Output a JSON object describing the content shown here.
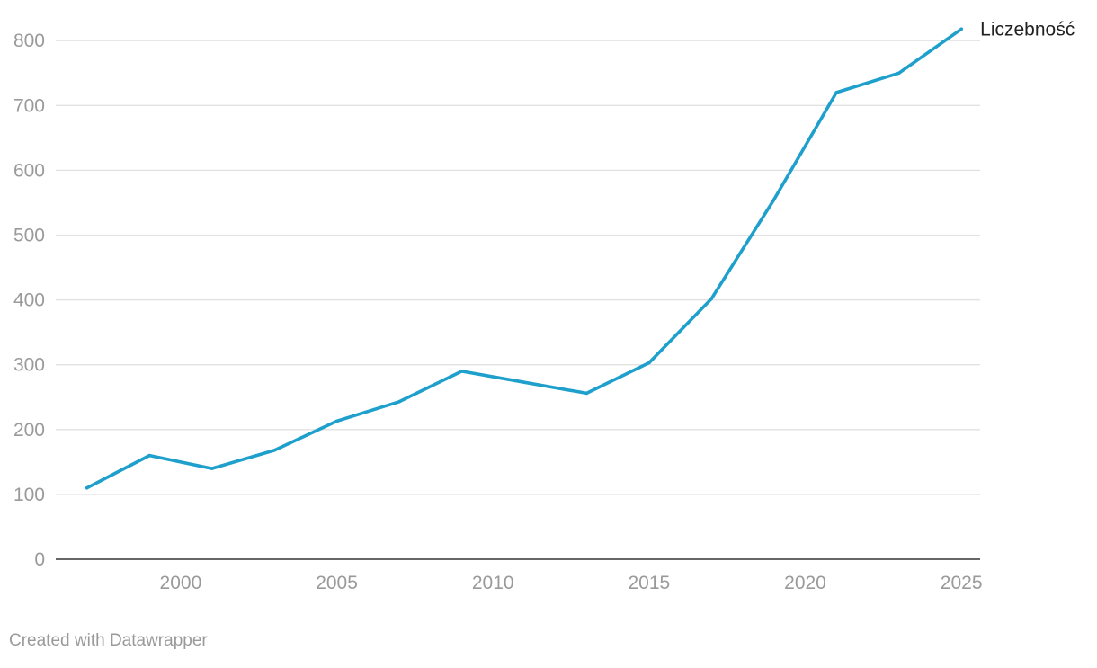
{
  "footer": {
    "credit": "Created with Datawrapper"
  },
  "chart_data": {
    "type": "line",
    "title": "",
    "xlabel": "",
    "ylabel": "",
    "x": [
      1997,
      1999,
      2001,
      2003,
      2005,
      2007,
      2009,
      2011,
      2013,
      2015,
      2017,
      2019,
      2021,
      2023,
      2025
    ],
    "series": [
      {
        "name": "Liczebność",
        "color": "#1fa0cc",
        "values": [
          110,
          160,
          140,
          168,
          213,
          243,
          290,
          273,
          256,
          303,
          402,
          555,
          720,
          750,
          818
        ]
      }
    ],
    "xlim": [
      1996,
      2025.6
    ],
    "ylim": [
      0,
      835
    ],
    "x_ticks": [
      "2000",
      "2005",
      "2010",
      "2015",
      "2020",
      "2025"
    ],
    "y_ticks": [
      "0",
      "100",
      "200",
      "300",
      "400",
      "500",
      "600",
      "700",
      "800"
    ],
    "grid": true,
    "legend": "direct label at end of line"
  }
}
